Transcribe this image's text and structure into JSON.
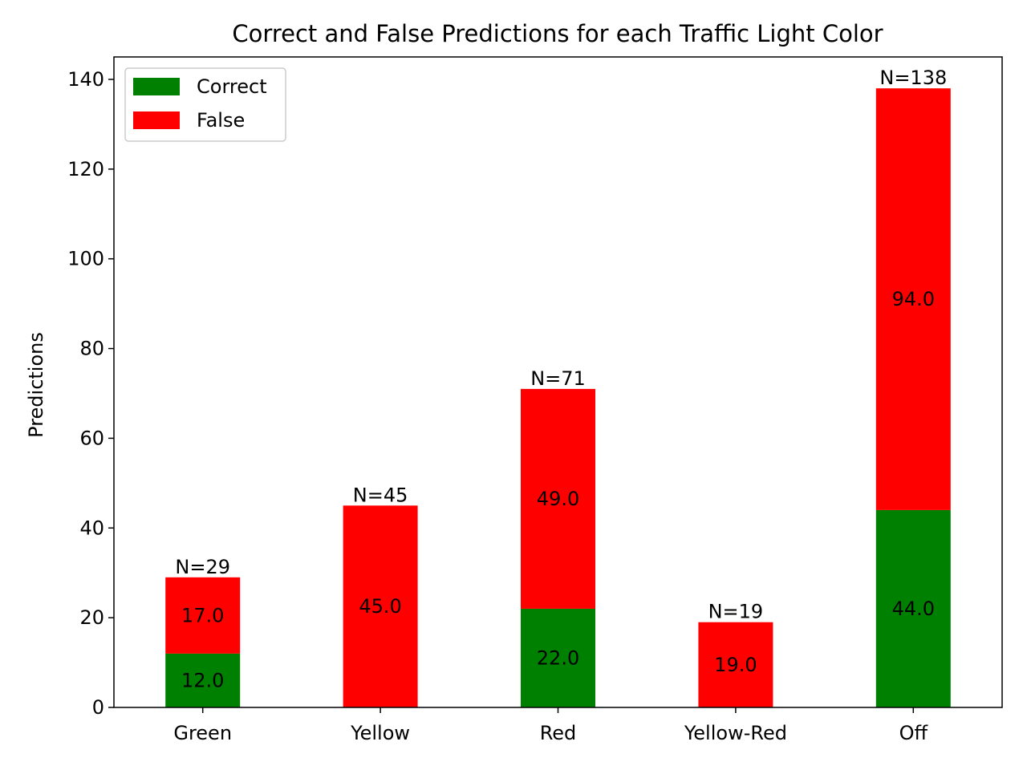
{
  "chart_data": {
    "type": "bar",
    "stacked": true,
    "title": "Correct and False Predictions for each Traffic Light Color",
    "xlabel": "",
    "ylabel": "Predictions",
    "categories": [
      "Green",
      "Yellow",
      "Red",
      "Yellow-Red",
      "Off"
    ],
    "series": [
      {
        "name": "Correct",
        "color": "#008000",
        "values": [
          12,
          0,
          22,
          0,
          44
        ],
        "labels": [
          "12.0",
          "",
          "22.0",
          "",
          "44.0"
        ]
      },
      {
        "name": "False",
        "color": "#ff0000",
        "values": [
          17,
          45,
          49,
          19,
          94
        ],
        "labels": [
          "17.0",
          "45.0",
          "49.0",
          "19.0",
          "94.0"
        ]
      }
    ],
    "totals": [
      29,
      45,
      71,
      19,
      138
    ],
    "total_labels": [
      "N=29",
      "N=45",
      "N=71",
      "N=19",
      "N=138"
    ],
    "ylim": [
      0,
      145
    ],
    "yticks": [
      0,
      20,
      40,
      60,
      80,
      100,
      120,
      140
    ],
    "ytick_labels": [
      "0",
      "20",
      "40",
      "60",
      "80",
      "100",
      "120",
      "140"
    ],
    "grid": false,
    "legend_position": "top-left"
  }
}
